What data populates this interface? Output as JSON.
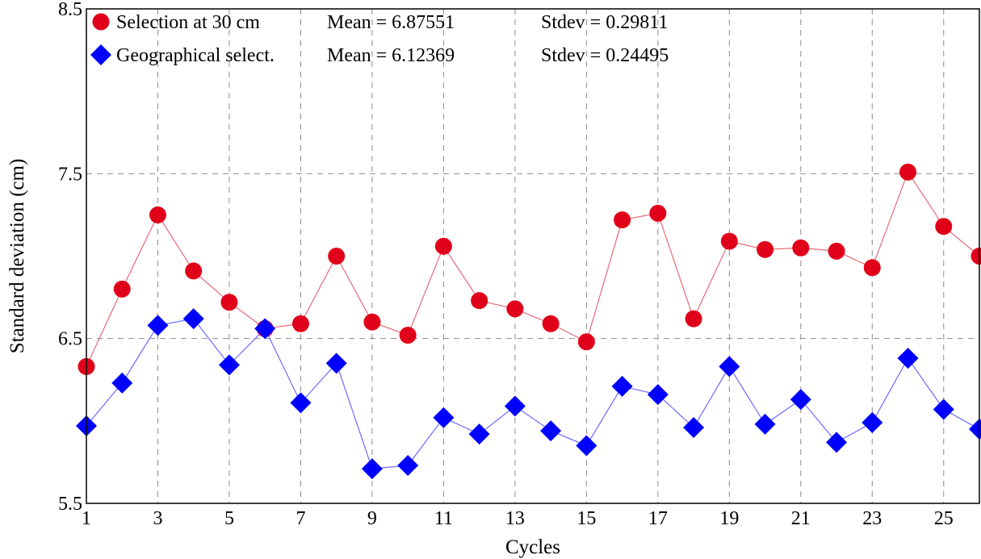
{
  "chart_data": {
    "type": "line",
    "xlabel": "Cycles",
    "ylabel": "Standard deviation (cm)",
    "xlim": [
      1,
      26
    ],
    "ylim": [
      5.5,
      8.5
    ],
    "xticks": [
      "1",
      "3",
      "5",
      "7",
      "9",
      "11",
      "13",
      "15",
      "17",
      "19",
      "21",
      "23",
      "25"
    ],
    "yticks": [
      "5.5",
      "6.5",
      "7.5",
      "8.5"
    ],
    "grid": true,
    "legend_position": "top-left",
    "x": [
      1,
      2,
      3,
      4,
      5,
      6,
      7,
      8,
      9,
      10,
      11,
      12,
      13,
      14,
      15,
      16,
      17,
      18,
      19,
      20,
      21,
      22,
      23,
      24,
      25,
      26
    ],
    "series": [
      {
        "name": "Selection at 30 cm",
        "mean_label": "Mean = 6.87551",
        "stdev_label": "Stdev = 0.29811",
        "color": "#e0001a",
        "line_color": "#e66a77",
        "marker": "circle",
        "values": [
          6.33,
          6.8,
          7.25,
          6.91,
          6.72,
          6.56,
          6.59,
          7.0,
          6.6,
          6.52,
          7.06,
          6.73,
          6.68,
          6.59,
          6.48,
          7.22,
          7.26,
          6.62,
          7.09,
          7.04,
          7.05,
          7.03,
          6.93,
          7.51,
          7.18,
          7.0
        ]
      },
      {
        "name": "Geographical select.",
        "mean_label": "Mean = 6.12369",
        "stdev_label": "Stdev = 0.24495",
        "color": "#0000ff",
        "line_color": "#6b6bff",
        "marker": "diamond",
        "values": [
          5.97,
          6.23,
          6.58,
          6.62,
          6.34,
          6.56,
          6.11,
          6.35,
          5.71,
          5.73,
          6.02,
          5.92,
          6.09,
          5.94,
          5.85,
          6.21,
          6.16,
          5.96,
          6.33,
          5.98,
          6.13,
          5.87,
          5.99,
          6.38,
          6.07,
          5.95
        ]
      }
    ]
  }
}
